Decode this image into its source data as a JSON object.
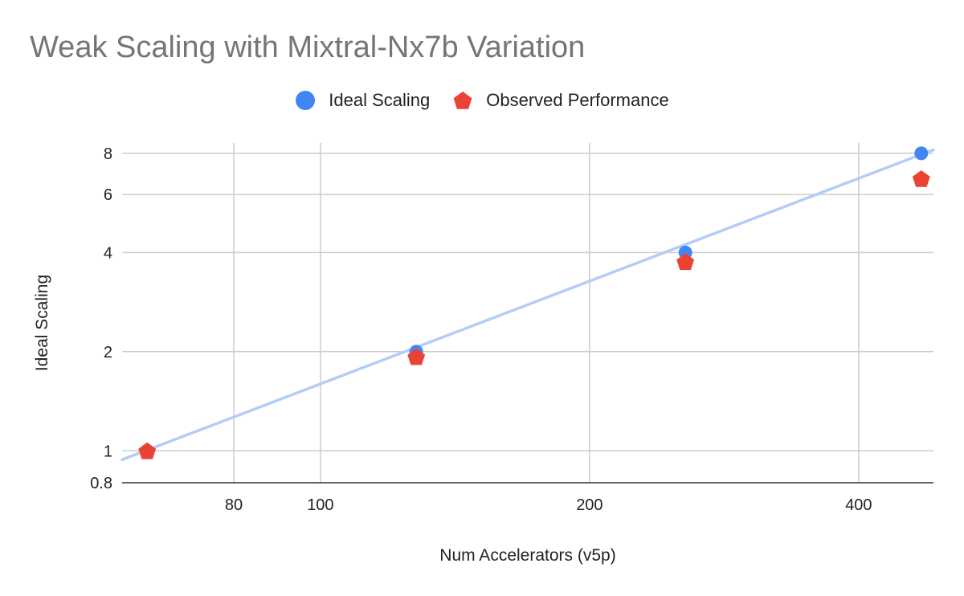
{
  "chart_data": {
    "type": "scatter",
    "title": "Weak Scaling with Mixtral-Nx7b Variation",
    "xlabel": "Num Accelerators (v5p)",
    "ylabel": "Ideal Scaling",
    "x_scale": "log",
    "y_scale": "log",
    "xlim": [
      60,
      485
    ],
    "ylim": [
      0.8,
      8.6
    ],
    "x_ticks": [
      80,
      100,
      200,
      400
    ],
    "y_ticks": [
      0.8,
      1,
      2,
      4,
      6,
      8
    ],
    "grid": true,
    "legend_position": "top",
    "series": [
      {
        "name": "Ideal Scaling",
        "marker": "circle",
        "color": "#4285F4",
        "x": [
          64,
          128,
          256,
          470
        ],
        "y": [
          1,
          2,
          4,
          8
        ]
      },
      {
        "name": "Observed Performance",
        "marker": "pentagon",
        "color": "#EA4335",
        "x": [
          64,
          128,
          256,
          470
        ],
        "y": [
          1,
          1.93,
          3.75,
          6.7
        ]
      }
    ],
    "trendline": {
      "color": "#B3CDF7",
      "x": [
        60,
        485
      ],
      "y": [
        0.94,
        8.2
      ]
    }
  }
}
